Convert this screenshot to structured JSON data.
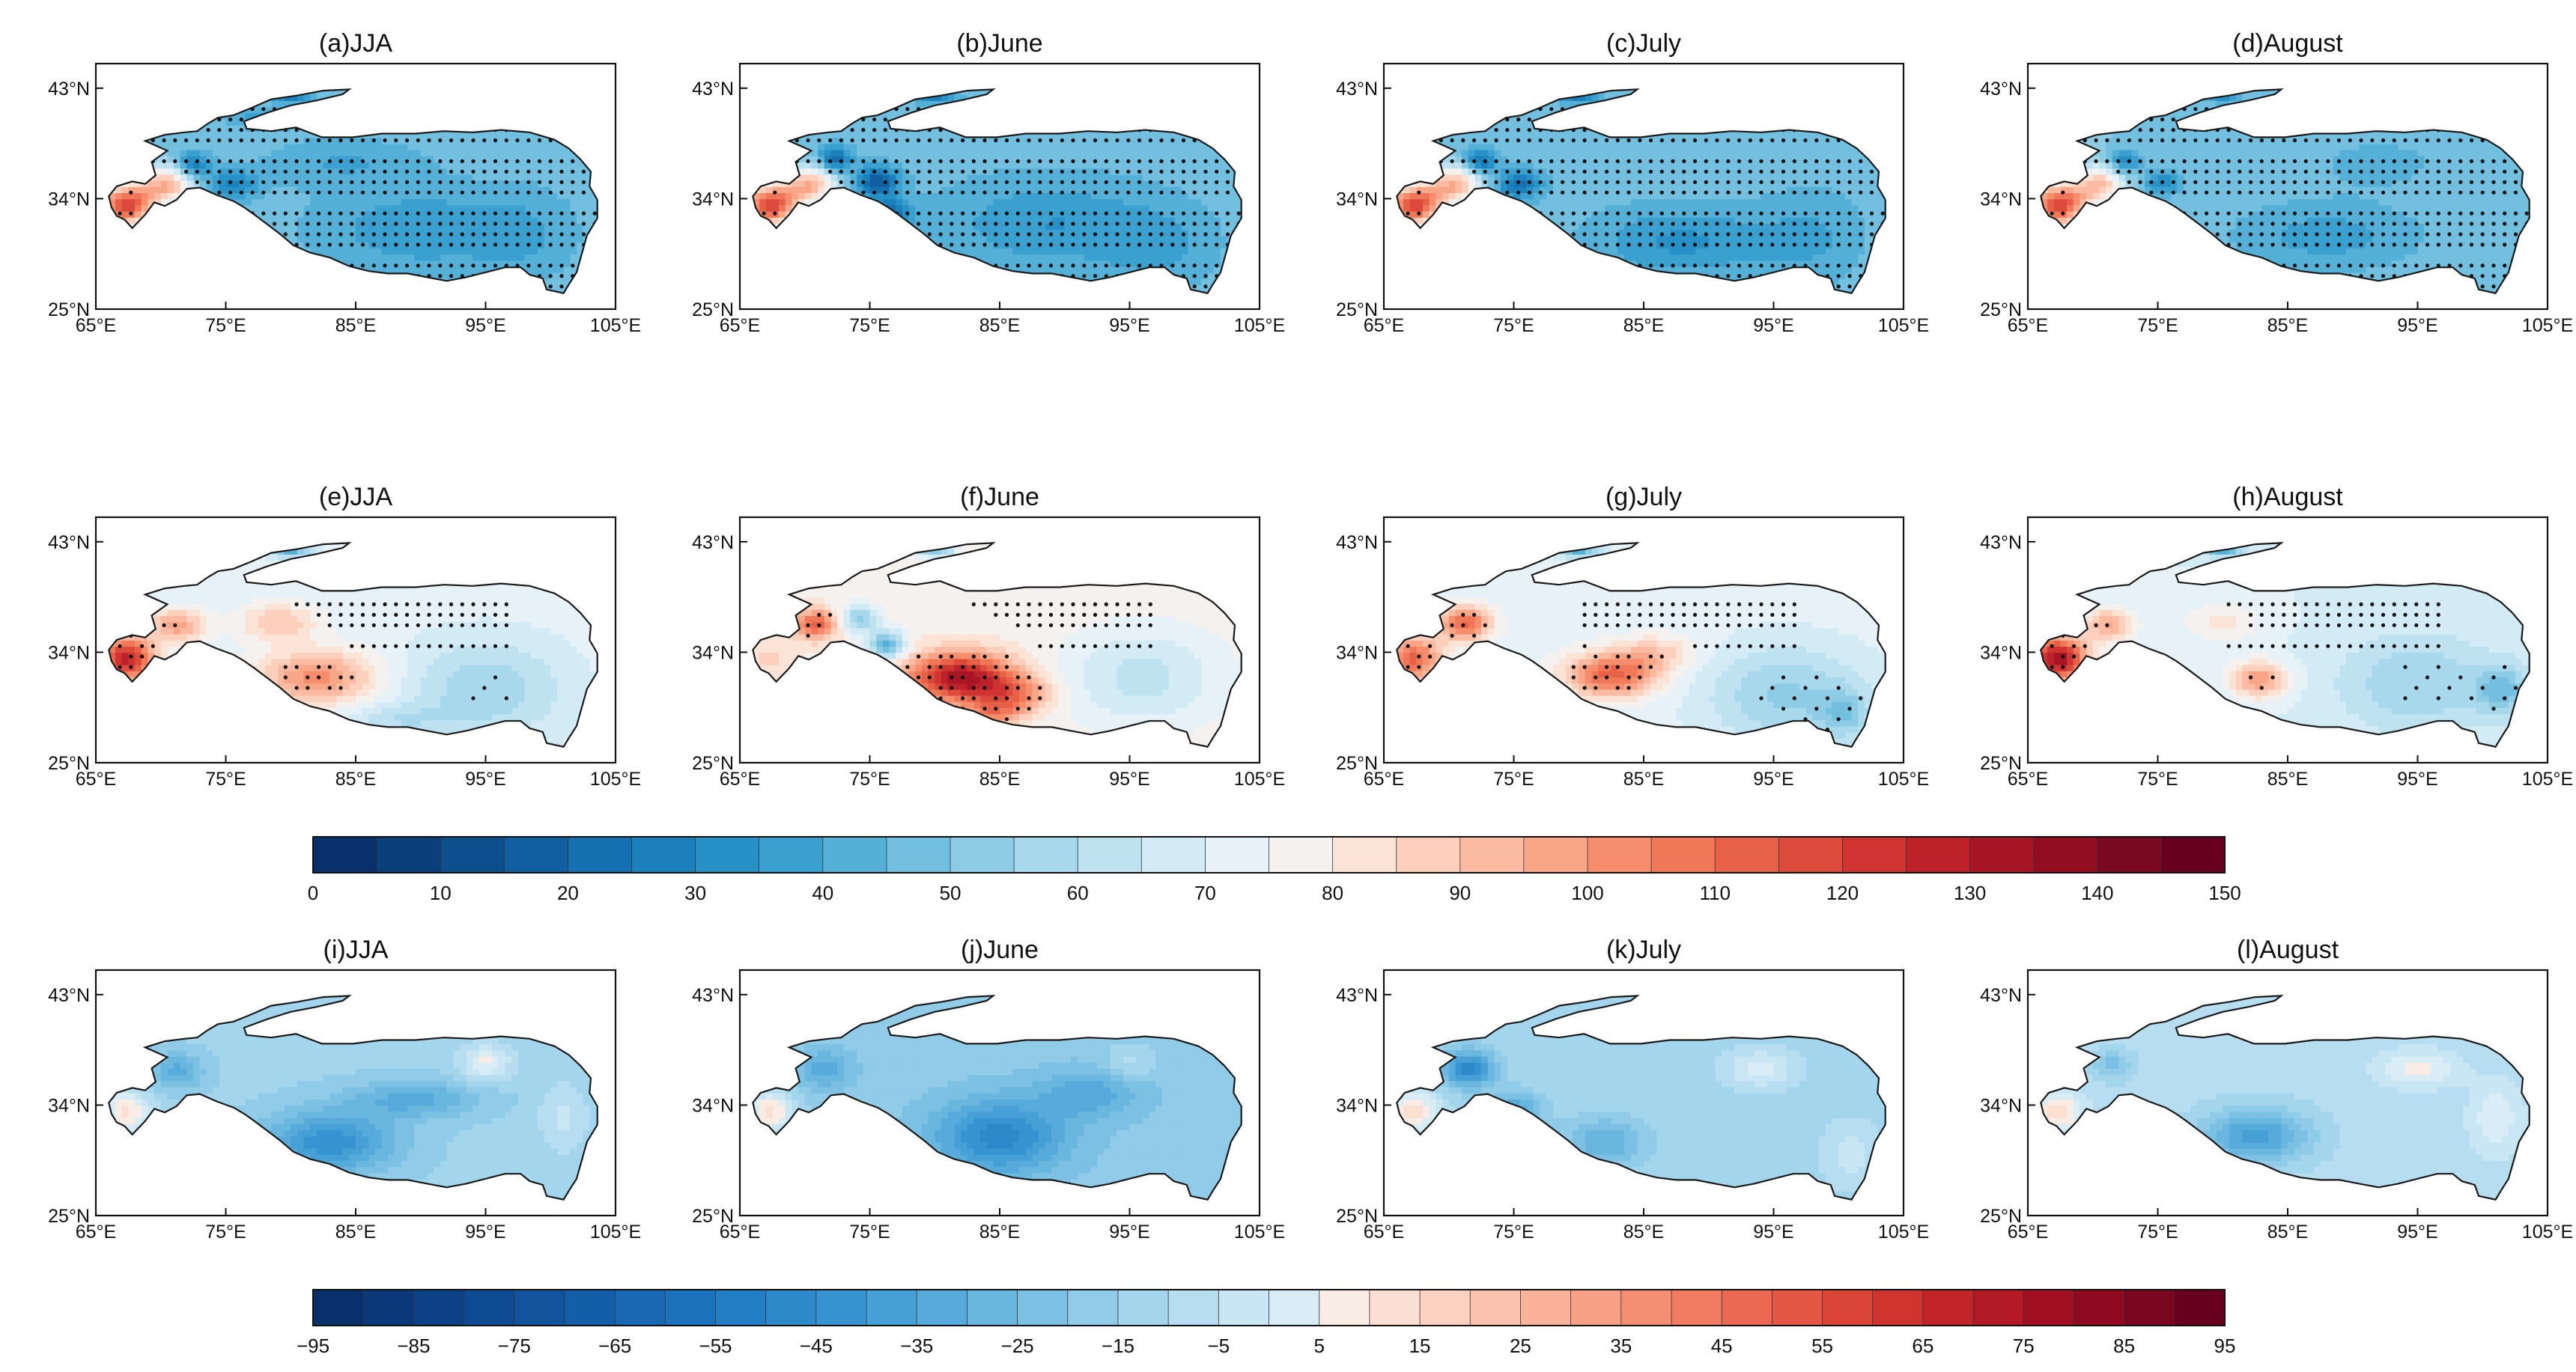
{
  "chart_data": {
    "type": "heatmap",
    "title": "",
    "description_keys": [
      "panels",
      "colorbars"
    ],
    "map_axes": {
      "xticks": [
        "65°E",
        "75°E",
        "85°E",
        "95°E",
        "105°E"
      ],
      "yticks": [
        "43°N",
        "34°N",
        "25°N"
      ],
      "xlim": [
        65,
        105
      ],
      "ylim": [
        25,
        45
      ],
      "xlabel": "",
      "ylabel": ""
    },
    "colorbars": [
      {
        "name": "upper",
        "ticks": [
          "0",
          "10",
          "20",
          "30",
          "40",
          "50",
          "60",
          "70",
          "80",
          "90",
          "100",
          "110",
          "120",
          "130",
          "140",
          "150"
        ],
        "range": [
          0,
          150
        ],
        "levels": 30,
        "colors": [
          "#08306b",
          "#0b3f7c",
          "#0d4e8f",
          "#115ea1",
          "#1570b1",
          "#1c80bd",
          "#2790c7",
          "#3aa0cf",
          "#55b0d8",
          "#72bfdf",
          "#8ecce6",
          "#a8d8ec",
          "#bfe2f1",
          "#d3ebf5",
          "#e6f2f7",
          "#f5f1ee",
          "#fbe3d6",
          "#fcd0bd",
          "#fbbba2",
          "#f9a587",
          "#f68e6e",
          "#f07758",
          "#e76048",
          "#dc4a3c",
          "#cf3432",
          "#bd212a",
          "#a81524",
          "#920d22",
          "#7a0820",
          "#67001f"
        ]
      },
      {
        "name": "lower",
        "ticks": [
          "−95",
          "−85",
          "−75",
          "−65",
          "−55",
          "−45",
          "−35",
          "−25",
          "−15",
          "−5",
          "5",
          "15",
          "25",
          "35",
          "45",
          "55",
          "65",
          "75",
          "85",
          "95"
        ],
        "range": [
          -95,
          95
        ],
        "levels": 38,
        "colors": [
          "#08306b",
          "#0a3878",
          "#0c4185",
          "#0e4a91",
          "#11549d",
          "#145ea8",
          "#1868b2",
          "#1d73bb",
          "#247ec3",
          "#2d89ca",
          "#3894d0",
          "#47a0d5",
          "#57abdb",
          "#69b6df",
          "#7cc1e4",
          "#90cbe8",
          "#a3d5ec",
          "#b6def0",
          "#c8e6f3",
          "#d9edf6",
          "#f9ece4",
          "#fbdfd2",
          "#fcd1c0",
          "#fbc2ad",
          "#fab29a",
          "#f8a187",
          "#f58f74",
          "#f17c62",
          "#eb6952",
          "#e45744",
          "#da4538",
          "#cf342f",
          "#c22528",
          "#b31924",
          "#a11022",
          "#8e0a21",
          "#7a0620",
          "#67001f"
        ]
      }
    ],
    "panels": [
      {
        "id": "a",
        "title": "(a)JJA",
        "row": 1,
        "colorbar": "upper",
        "stippling": true,
        "summary": "mostly blue (30-60), red near western margin"
      },
      {
        "id": "b",
        "title": "(b)June",
        "row": 1,
        "colorbar": "upper",
        "stippling": true,
        "summary": "mostly blue (30-60), red near western margin"
      },
      {
        "id": "c",
        "title": "(c)July",
        "row": 1,
        "colorbar": "upper",
        "stippling": true,
        "summary": "mostly blue (30-60), red near western margin"
      },
      {
        "id": "d",
        "title": "(d)August",
        "row": 1,
        "colorbar": "upper",
        "stippling": true,
        "summary": "mostly blue (30-60), red near western margin"
      },
      {
        "id": "e",
        "title": "(e)JJA",
        "row": 2,
        "colorbar": "upper",
        "stippling": true,
        "summary": "red core in west-central plateau, blue east"
      },
      {
        "id": "f",
        "title": "(f)June",
        "row": 2,
        "colorbar": "upper",
        "stippling": true,
        "summary": "strong red core near 80-85E 31N, blue east"
      },
      {
        "id": "g",
        "title": "(g)July",
        "row": 2,
        "colorbar": "upper",
        "stippling": true,
        "summary": "red core west-central, blue south-east"
      },
      {
        "id": "h",
        "title": "(h)August",
        "row": 2,
        "colorbar": "upper",
        "stippling": true,
        "summary": "weaker red core, blue south-east"
      },
      {
        "id": "i",
        "title": "(i)JJA",
        "row": 3,
        "colorbar": "lower",
        "stippling": false,
        "summary": "mostly light blue, darker near 80-85E 30N"
      },
      {
        "id": "j",
        "title": "(j)June",
        "row": 3,
        "colorbar": "lower",
        "stippling": false,
        "summary": "broad blue, darkest 80-88E"
      },
      {
        "id": "k",
        "title": "(k)July",
        "row": 3,
        "colorbar": "lower",
        "stippling": false,
        "summary": "blue west, light elsewhere"
      },
      {
        "id": "l",
        "title": "(l)August",
        "row": 3,
        "colorbar": "lower",
        "stippling": false,
        "summary": "light blue, slight red east"
      }
    ]
  }
}
